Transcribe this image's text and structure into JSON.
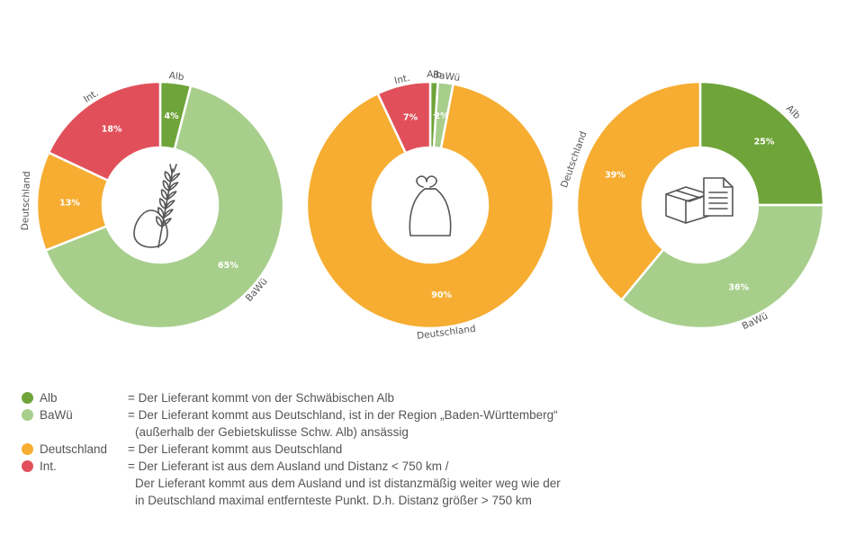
{
  "colors": {
    "Alb": "#6fa43a",
    "BaWü": "#a8ce8c",
    "Deutschland": "#f6ad32",
    "Int.": "#e1505a"
  },
  "chart_data": [
    {
      "type": "pie",
      "icon": "wheat-egg-icon",
      "slices": [
        {
          "name": "Alb",
          "value": 4,
          "label": "4%"
        },
        {
          "name": "BaWü",
          "value": 65,
          "label": "65%"
        },
        {
          "name": "Deutschland",
          "value": 13,
          "label": "13%"
        },
        {
          "name": "Int.",
          "value": 18,
          "label": "18%"
        }
      ]
    },
    {
      "type": "pie",
      "icon": "flour-sack-icon",
      "slices": [
        {
          "name": "Alb",
          "value": 1,
          "label": "1%"
        },
        {
          "name": "BaWü",
          "value": 2,
          "label": "2%"
        },
        {
          "name": "Deutschland",
          "value": 90,
          "label": "90%"
        },
        {
          "name": "Int.",
          "value": 7,
          "label": "7%"
        }
      ]
    },
    {
      "type": "pie",
      "icon": "box-document-icon",
      "slices": [
        {
          "name": "Alb",
          "value": 25,
          "label": "25%"
        },
        {
          "name": "BaWü",
          "value": 36,
          "label": "36%"
        },
        {
          "name": "Deutschland",
          "value": 39,
          "label": "39%"
        }
      ]
    }
  ],
  "legend": [
    {
      "name": "Alb",
      "desc": "= Der Lieferant kommt von der Schwäbischen Alb",
      "cont": []
    },
    {
      "name": "BaWü",
      "desc": "= Der Lieferant kommt aus Deutschland, ist in der Region „Baden-Württemberg“",
      "cont": [
        "(außerhalb der Gebietskulisse Schw. Alb) ansässig"
      ]
    },
    {
      "name": "Deutschland",
      "desc": "= Der Lieferant kommt aus Deutschland",
      "cont": []
    },
    {
      "name": "Int.",
      "desc": "= Der Lieferant ist aus dem Ausland und Distanz < 750 km /",
      "cont": [
        "Der Lieferant kommt aus dem Ausland und ist distanzmäßig weiter weg wie der",
        "in Deutschland maximal entfernteste Punkt. D.h. Distanz größer > 750 km"
      ]
    }
  ]
}
